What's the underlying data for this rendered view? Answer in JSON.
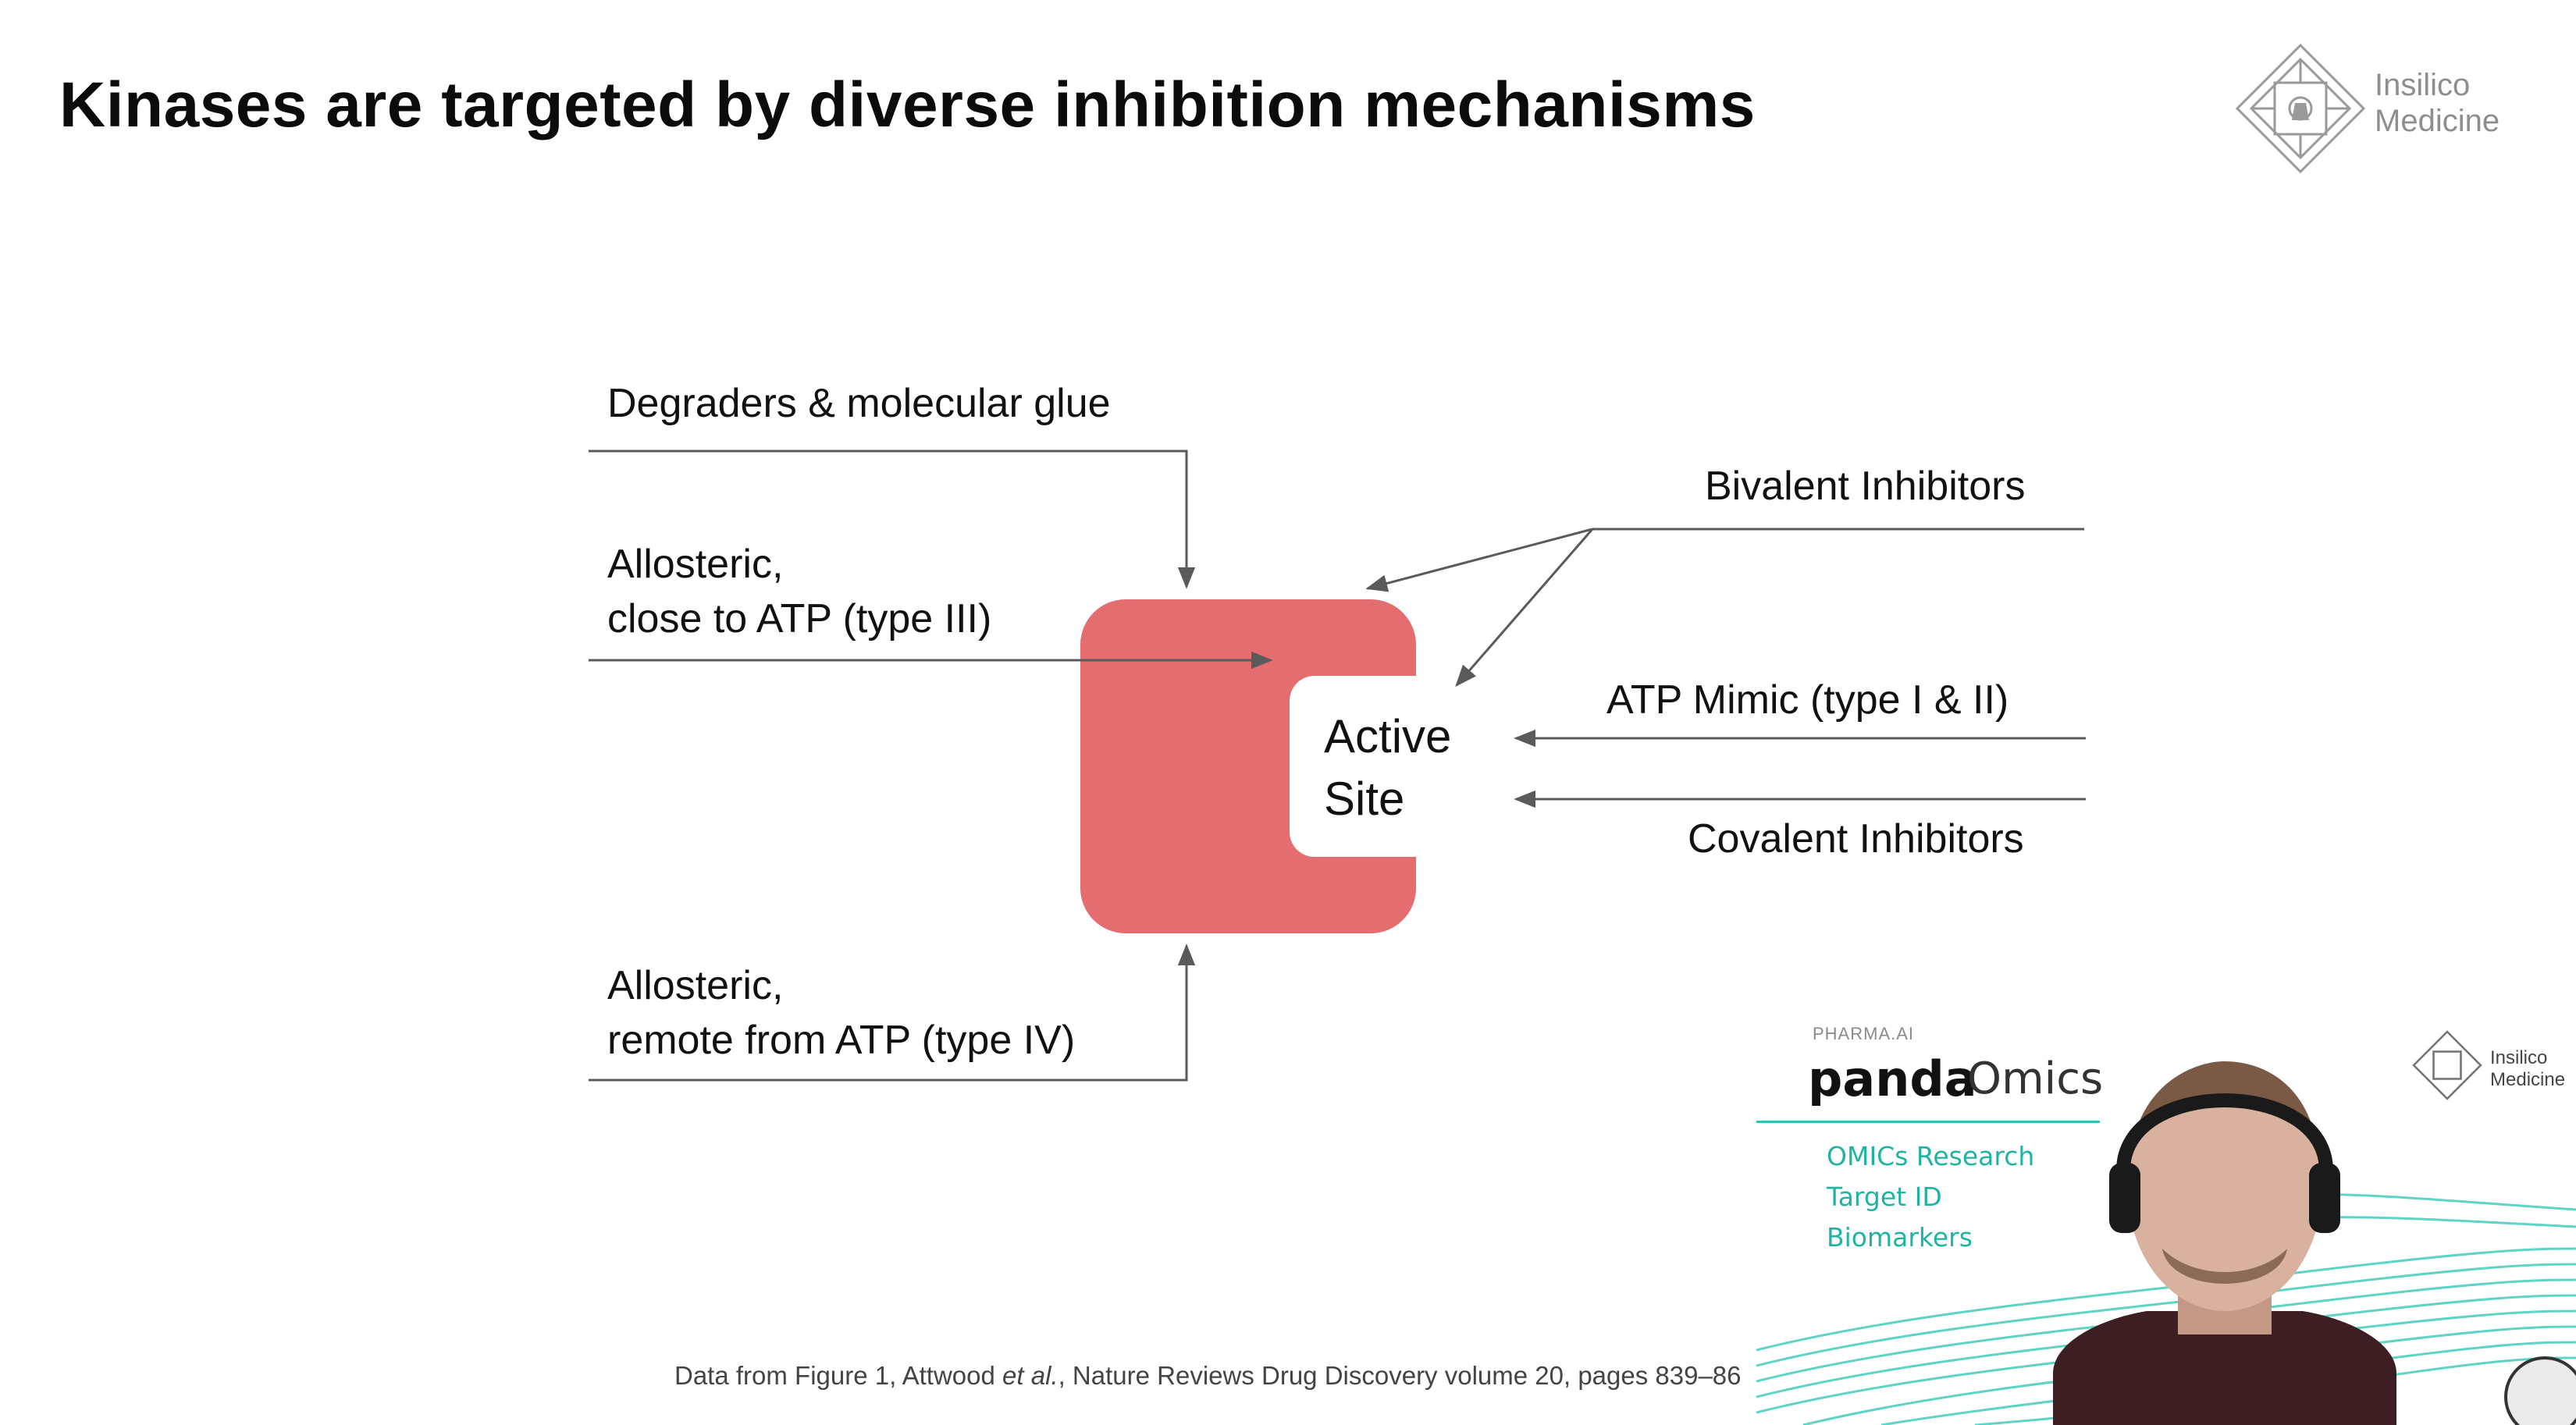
{
  "slide": {
    "title": "Kinases are targeted by diverse inhibition mechanisms",
    "logo": {
      "line1": "Insilico",
      "line2": "Medicine"
    }
  },
  "diagram": {
    "center": {
      "line1": "Active",
      "line2": "Site",
      "color": "#e46d6f"
    },
    "labels": {
      "degraders": "Degraders & molecular glue",
      "allosteric_close_1": "Allosteric,",
      "allosteric_close_2": "close to ATP (type III)",
      "allosteric_remote_1": "Allosteric,",
      "allosteric_remote_2": "remote from ATP (type IV)",
      "bivalent": "Bivalent Inhibitors",
      "atp_mimic": "ATP Mimic (type I & II)",
      "covalent": "Covalent Inhibitors"
    },
    "line_color": "#5a5a5a"
  },
  "footnote": {
    "prefix": "Data from Figure 1, Attwood ",
    "italic": "et al.",
    "suffix": ", Nature Reviews Drug Discovery volume 20, pages 839–86"
  },
  "webcam": {
    "brand_small": "PHARMA.AI",
    "brand_bold": "panda",
    "brand_light": "Omics",
    "items": [
      "OMICs Research",
      "Target ID",
      "Biomarkers"
    ],
    "logo": {
      "line1": "Insilico",
      "line2": "Medicine"
    },
    "accent": "#29c5b4"
  }
}
